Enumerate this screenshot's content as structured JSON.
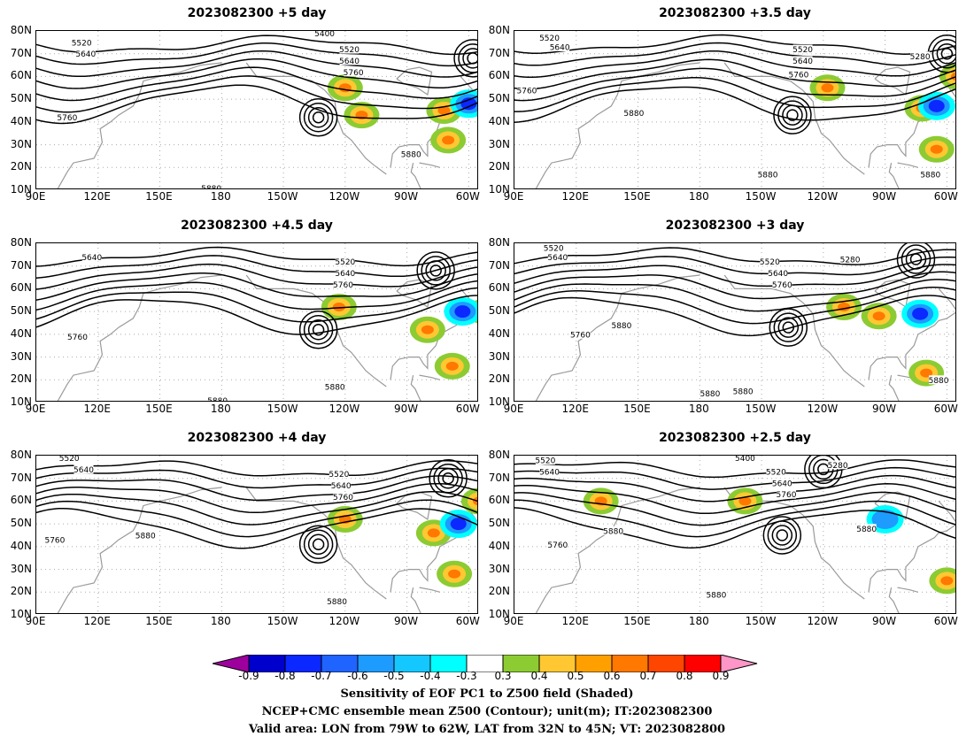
{
  "panels": [
    {
      "title": "2023082300 +5 day",
      "lows": [
        {
          "lon": -133,
          "lat": 42
        },
        {
          "lon": -58,
          "lat": 68
        }
      ],
      "pos": [
        {
          "lon": -72,
          "lat": 45
        },
        {
          "lon": -112,
          "lat": 43
        },
        {
          "lon": -120,
          "lat": 55
        },
        {
          "lon": -70,
          "lat": 32
        }
      ],
      "neg": [
        {
          "lon": -60,
          "lat": 48,
          "amp": 0.8
        }
      ],
      "contour_labels": [
        {
          "text": "5520",
          "lon": 112,
          "lat": 75
        },
        {
          "text": "5640",
          "lon": 114,
          "lat": 70
        },
        {
          "text": "5400",
          "lon": -130,
          "lat": 79
        },
        {
          "text": "5520",
          "lon": -118,
          "lat": 72
        },
        {
          "text": "5640",
          "lon": -118,
          "lat": 67
        },
        {
          "text": "5760",
          "lon": -116,
          "lat": 62
        },
        {
          "text": "5760",
          "lon": 105,
          "lat": 42
        },
        {
          "text": "5880",
          "lon": -88,
          "lat": 26
        },
        {
          "text": "5880",
          "lon": 175,
          "lat": 11
        }
      ]
    },
    {
      "title": "2023082300 +3.5 day",
      "lows": [
        {
          "lon": -135,
          "lat": 43
        },
        {
          "lon": -60,
          "lat": 70
        }
      ],
      "pos": [
        {
          "lon": -72,
          "lat": 46
        },
        {
          "lon": -118,
          "lat": 55
        },
        {
          "lon": -65,
          "lat": 28
        },
        {
          "lon": -55,
          "lat": 60
        }
      ],
      "neg": [
        {
          "lon": -65,
          "lat": 47,
          "amp": 0.6
        }
      ],
      "contour_labels": [
        {
          "text": "5520",
          "lon": 107,
          "lat": 77
        },
        {
          "text": "5640",
          "lon": 112,
          "lat": 73
        },
        {
          "text": "5520",
          "lon": -130,
          "lat": 72
        },
        {
          "text": "5640",
          "lon": -130,
          "lat": 67
        },
        {
          "text": "5760",
          "lon": -132,
          "lat": 61
        },
        {
          "text": "5280",
          "lon": -73,
          "lat": 69
        },
        {
          "text": "5760",
          "lon": 96,
          "lat": 54
        },
        {
          "text": "5880",
          "lon": 148,
          "lat": 44
        },
        {
          "text": "5880",
          "lon": -147,
          "lat": 17
        },
        {
          "text": "5880",
          "lon": -68,
          "lat": 17
        }
      ]
    },
    {
      "title": "2023082300 +4.5 day",
      "lows": [
        {
          "lon": -133,
          "lat": 42
        },
        {
          "lon": -76,
          "lat": 68
        }
      ],
      "pos": [
        {
          "lon": -80,
          "lat": 42
        },
        {
          "lon": -123,
          "lat": 52
        },
        {
          "lon": -68,
          "lat": 26
        },
        {
          "lon": -52,
          "lat": 50
        }
      ],
      "neg": [
        {
          "lon": -63,
          "lat": 50,
          "amp": 0.9
        }
      ],
      "contour_labels": [
        {
          "text": "5520",
          "lon": -120,
          "lat": 72
        },
        {
          "text": "5640",
          "lon": -120,
          "lat": 67
        },
        {
          "text": "5760",
          "lon": -121,
          "lat": 62
        },
        {
          "text": "5640",
          "lon": 117,
          "lat": 74
        },
        {
          "text": "5760",
          "lon": 110,
          "lat": 39
        },
        {
          "text": "5880",
          "lon": -125,
          "lat": 17
        },
        {
          "text": "5880",
          "lon": 178,
          "lat": 11
        }
      ]
    },
    {
      "title": "2023082300 +3 day",
      "lows": [
        {
          "lon": -137,
          "lat": 43
        },
        {
          "lon": -75,
          "lat": 73
        }
      ],
      "pos": [
        {
          "lon": -93,
          "lat": 48
        },
        {
          "lon": -70,
          "lat": 23
        },
        {
          "lon": -110,
          "lat": 52
        }
      ],
      "neg": [
        {
          "lon": -73,
          "lat": 49,
          "amp": 0.6
        }
      ],
      "contour_labels": [
        {
          "text": "5520",
          "lon": 109,
          "lat": 78
        },
        {
          "text": "5640",
          "lon": 111,
          "lat": 74
        },
        {
          "text": "5520",
          "lon": -146,
          "lat": 72
        },
        {
          "text": "5640",
          "lon": -142,
          "lat": 67
        },
        {
          "text": "5760",
          "lon": -140,
          "lat": 62
        },
        {
          "text": "5280",
          "lon": -107,
          "lat": 73
        },
        {
          "text": "5760",
          "lon": 122,
          "lat": 40
        },
        {
          "text": "5880",
          "lon": 142,
          "lat": 44
        },
        {
          "text": "5880",
          "lon": -175,
          "lat": 14
        },
        {
          "text": "5880",
          "lon": -159,
          "lat": 15
        },
        {
          "text": "5880",
          "lon": -64,
          "lat": 20
        }
      ]
    },
    {
      "title": "2023082300 +4 day",
      "lows": [
        {
          "lon": -133,
          "lat": 41
        },
        {
          "lon": -70,
          "lat": 70
        }
      ],
      "pos": [
        {
          "lon": -77,
          "lat": 46
        },
        {
          "lon": -120,
          "lat": 52
        },
        {
          "lon": -67,
          "lat": 28
        },
        {
          "lon": -55,
          "lat": 60
        }
      ],
      "neg": [
        {
          "lon": -65,
          "lat": 50,
          "amp": 0.7
        }
      ],
      "contour_labels": [
        {
          "text": "5520",
          "lon": 106,
          "lat": 79
        },
        {
          "text": "5640",
          "lon": 113,
          "lat": 74
        },
        {
          "text": "5520",
          "lon": -123,
          "lat": 72
        },
        {
          "text": "5640",
          "lon": -122,
          "lat": 67
        },
        {
          "text": "5760",
          "lon": -121,
          "lat": 62
        },
        {
          "text": "5760",
          "lon": 99,
          "lat": 43
        },
        {
          "text": "5880",
          "lon": 143,
          "lat": 45
        },
        {
          "text": "5880",
          "lon": -124,
          "lat": 16
        }
      ]
    },
    {
      "title": "2023082300 +2.5 day",
      "lows": [
        {
          "lon": -140,
          "lat": 45
        },
        {
          "lon": -120,
          "lat": 74
        }
      ],
      "pos": [
        {
          "lon": -60,
          "lat": 25
        },
        {
          "lon": -158,
          "lat": 60
        },
        {
          "lon": 132,
          "lat": 60
        }
      ],
      "neg": [
        {
          "lon": -90,
          "lat": 52,
          "amp": 0.4
        }
      ],
      "contour_labels": [
        {
          "text": "5520",
          "lon": 105,
          "lat": 78
        },
        {
          "text": "5640",
          "lon": 107,
          "lat": 73
        },
        {
          "text": "5400",
          "lon": -158,
          "lat": 79
        },
        {
          "text": "5520",
          "lon": -143,
          "lat": 73
        },
        {
          "text": "5640",
          "lon": -140,
          "lat": 68
        },
        {
          "text": "5760",
          "lon": -138,
          "lat": 63
        },
        {
          "text": "5280",
          "lon": -113,
          "lat": 76
        },
        {
          "text": "5760",
          "lon": 111,
          "lat": 41
        },
        {
          "text": "5880",
          "lon": 138,
          "lat": 47
        },
        {
          "text": "5880",
          "lon": -99,
          "lat": 48
        },
        {
          "text": "5880",
          "lon": -172,
          "lat": 19
        }
      ]
    }
  ],
  "lat_labels": [
    "10N",
    "20N",
    "30N",
    "40N",
    "50N",
    "60N",
    "70N",
    "80N"
  ],
  "lon_labels": [
    "90E",
    "120E",
    "150E",
    "180",
    "150W",
    "120W",
    "90W",
    "60W"
  ],
  "colorbar": {
    "colors": [
      "#9e009e",
      "#0000cc",
      "#0a28ff",
      "#1f64ff",
      "#1e9bff",
      "#14c8ff",
      "#00ffff",
      "#ffffff",
      "#8ccb32",
      "#ffc832",
      "#ffa000",
      "#ff7800",
      "#ff4600",
      "#ff0000",
      "#ff96c8"
    ],
    "ticks": [
      "-0.9",
      "-0.8",
      "-0.7",
      "-0.6",
      "-0.5",
      "-0.4",
      "-0.3",
      "0.3",
      "0.4",
      "0.5",
      "0.6",
      "0.7",
      "0.8",
      "0.9"
    ]
  },
  "caption": {
    "line1": "Sensitivity of EOF PC1 to Z500 field (Shaded)",
    "line2": "NCEP+CMC ensemble mean Z500 (Contour); unit(m); IT:2023082300",
    "line3": "Valid area: LON from 79W to 62W, LAT from 32N to 45N; VT: 2023082800"
  }
}
